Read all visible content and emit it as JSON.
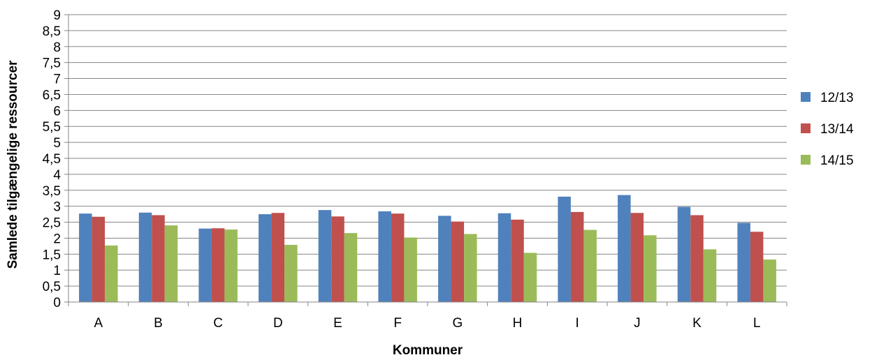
{
  "chart_data": {
    "type": "bar",
    "title": "",
    "xlabel": "Kommuner",
    "ylabel": "Samlede tilgængelige ressourcer",
    "ylim": [
      0,
      9
    ],
    "ytick_step": 0.5,
    "ytick_labels": [
      "0",
      "0,5",
      "1",
      "1,5",
      "2",
      "2,5",
      "3",
      "3,5",
      "4",
      "4,5",
      "5",
      "5,5",
      "6",
      "6,5",
      "7",
      "7,5",
      "8",
      "8,5",
      "9"
    ],
    "grid": true,
    "legend_position": "right",
    "categories": [
      "A",
      "B",
      "C",
      "D",
      "E",
      "F",
      "G",
      "H",
      "I",
      "J",
      "K",
      "L"
    ],
    "series": [
      {
        "name": "12/13",
        "color": "#4F81BD",
        "values": [
          2.77,
          2.8,
          2.3,
          2.75,
          2.88,
          2.84,
          2.7,
          2.78,
          3.3,
          3.35,
          2.98,
          2.48
        ]
      },
      {
        "name": "13/14",
        "color": "#C0504D",
        "values": [
          2.67,
          2.72,
          2.31,
          2.79,
          2.68,
          2.77,
          2.52,
          2.58,
          2.82,
          2.79,
          2.72,
          2.2
        ]
      },
      {
        "name": "14/15",
        "color": "#9BBB59",
        "values": [
          1.77,
          2.4,
          2.27,
          1.79,
          2.16,
          2.02,
          2.13,
          1.54,
          2.26,
          2.09,
          1.65,
          1.33
        ]
      }
    ]
  }
}
